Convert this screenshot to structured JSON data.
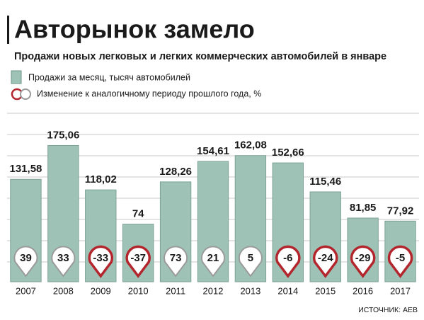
{
  "chart_data": {
    "type": "bar",
    "title": "Авторынок замело",
    "subtitle": "Продажи новых легковых и легких коммерческих автомобилей в январе",
    "categories": [
      "2007",
      "2008",
      "2009",
      "2010",
      "2011",
      "2012",
      "2013",
      "2014",
      "2015",
      "2016",
      "2017"
    ],
    "series": [
      {
        "name": "Продажи за месяц, тысяч автомобилей",
        "color": "#9ec2b5",
        "values": [
          131.58,
          175.06,
          118.02,
          74,
          128.26,
          154.61,
          162.08,
          152.66,
          115.46,
          81.85,
          77.92
        ],
        "value_labels": [
          "131,58",
          "175,06",
          "118,02",
          "74",
          "128,26",
          "154,61",
          "162,08",
          "152,66",
          "115,46",
          "81,85",
          "77,92"
        ]
      },
      {
        "name": "Изменение к аналогичному периоду прошлого года, %",
        "color": "#b3262d",
        "values": [
          39,
          33,
          -33,
          -37,
          73,
          21,
          5,
          -6,
          -24,
          -29,
          -5
        ]
      }
    ],
    "source": "ИСТОЧНИК: АЕВ"
  }
}
